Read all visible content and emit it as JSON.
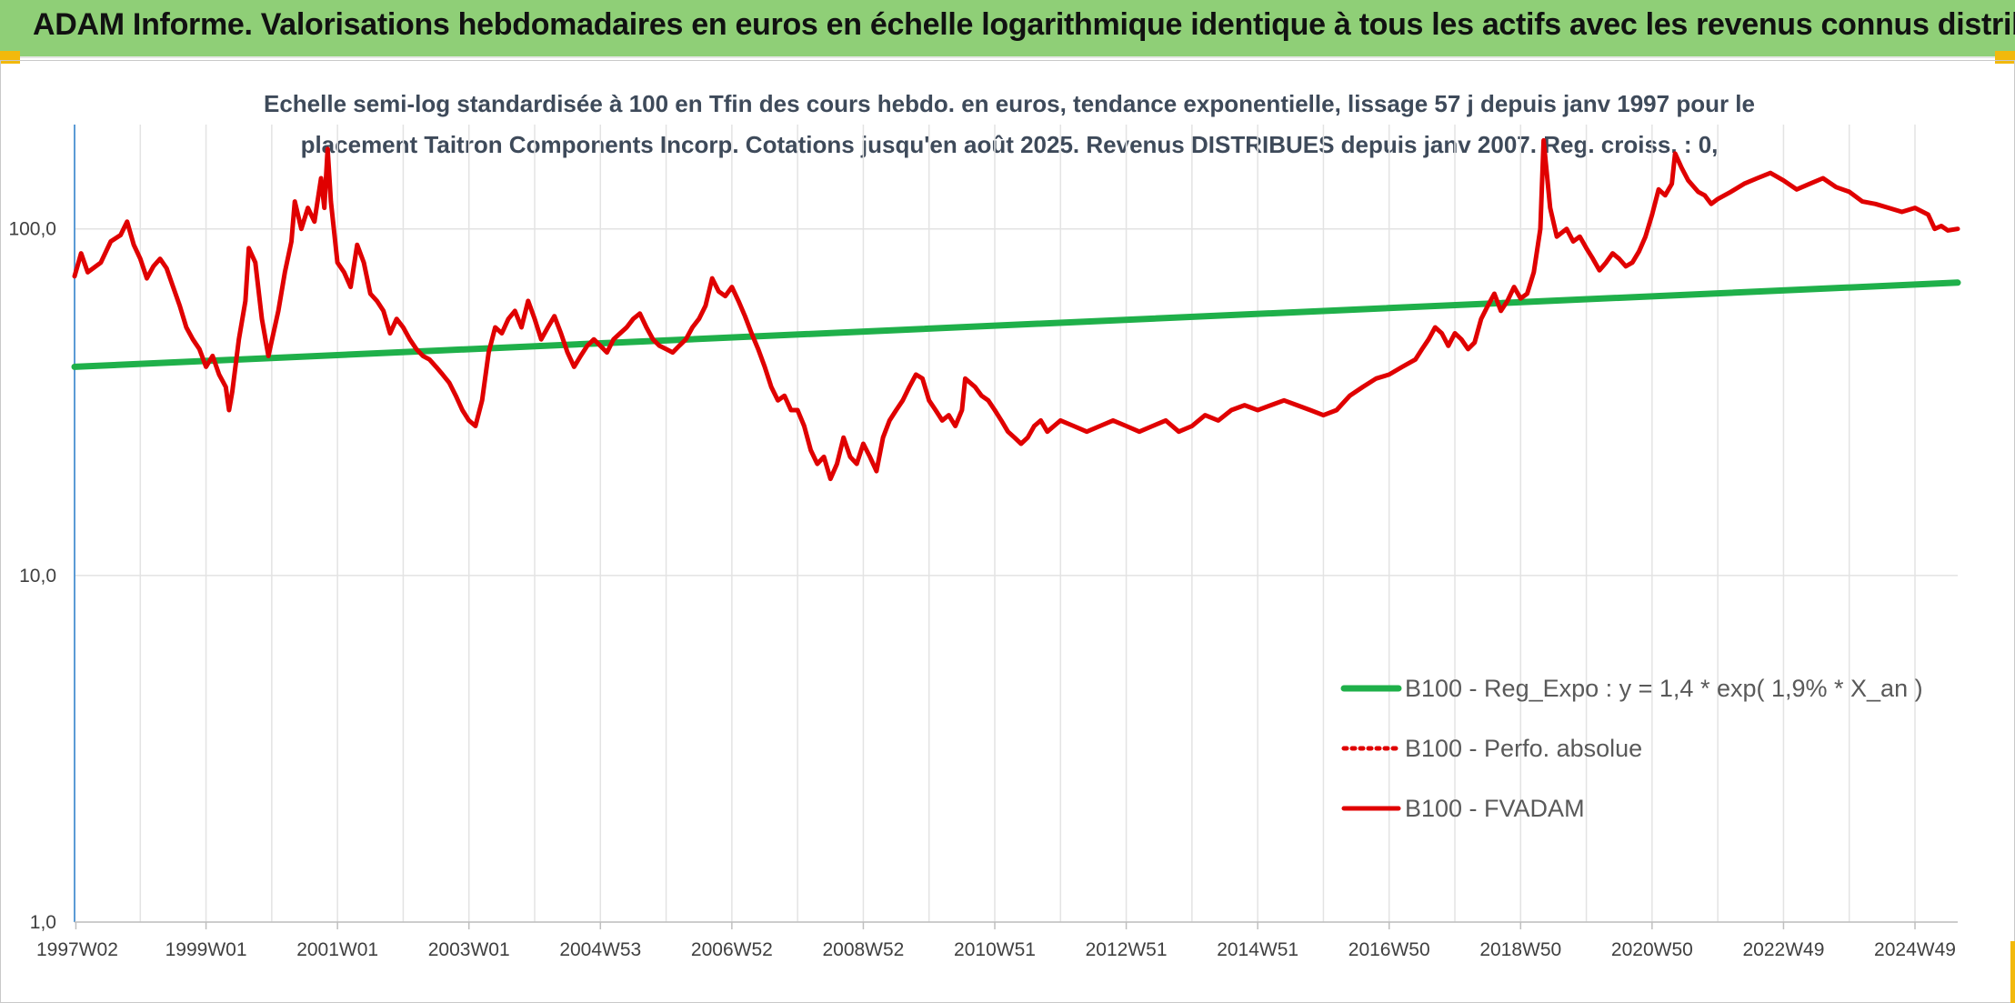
{
  "header": {
    "title": "ADAM Informe. Valorisations hebdomadaires en euros en échelle logarithmique identique à tous les actifs avec les revenus connus distribués",
    "accent_color": "#8fcf77",
    "corner_color": "#f2b90c"
  },
  "chart_data": {
    "type": "line",
    "subtitle_line1": "Echelle semi-log standardisée à 100 en Tfin des cours hebdo. en euros, tendance exponentielle, lissage 57 j depuis janv 1997 pour le",
    "subtitle_line2": "placement Taitron Components Incorp. Cotations jusqu'en août 2025. Revenus DISTRIBUES depuis janv 2007. Reg. croiss. : 0,",
    "y_scale": "log",
    "ylim": [
      1,
      200
    ],
    "y_ticks": [
      {
        "value": 1,
        "label": "1,0"
      },
      {
        "value": 10,
        "label": "10,0"
      },
      {
        "value": 100,
        "label": "100,0"
      }
    ],
    "xlim": [
      1997.0,
      2025.65
    ],
    "x_ticks": [
      {
        "year": 1997.02,
        "label": "1997W02"
      },
      {
        "year": 1999.0,
        "label": "1999W01"
      },
      {
        "year": 2001.0,
        "label": "2001W01"
      },
      {
        "year": 2003.0,
        "label": "2003W01"
      },
      {
        "year": 2005.0,
        "label": "2004W53"
      },
      {
        "year": 2007.0,
        "label": "2006W52"
      },
      {
        "year": 2009.0,
        "label": "2008W52"
      },
      {
        "year": 2011.0,
        "label": "2010W51"
      },
      {
        "year": 2013.0,
        "label": "2012W51"
      },
      {
        "year": 2015.0,
        "label": "2014W51"
      },
      {
        "year": 2017.0,
        "label": "2016W50"
      },
      {
        "year": 2019.0,
        "label": "2018W50"
      },
      {
        "year": 2021.0,
        "label": "2020W50"
      },
      {
        "year": 2023.0,
        "label": "2022W49"
      },
      {
        "year": 2025.0,
        "label": "2024W49"
      }
    ],
    "grid": true,
    "legend_placement": "bottom-right",
    "series": [
      {
        "name": "B100 - Reg_Expo : y = 1,4 * exp( 1,9% *  X_an )",
        "color": "#1fb04a",
        "style": "solid",
        "points": [
          [
            1997.0,
            40
          ],
          [
            2025.65,
            70
          ]
        ]
      },
      {
        "name": "B100 - Perfo. absolue",
        "color": "#e00000",
        "style": "dotted",
        "points": []
      },
      {
        "name": "B100 - FVADAM",
        "color": "#e00000",
        "style": "solid",
        "points": [
          [
            1997.0,
            73
          ],
          [
            1997.1,
            85
          ],
          [
            1997.2,
            75
          ],
          [
            1997.4,
            80
          ],
          [
            1997.55,
            92
          ],
          [
            1997.7,
            96
          ],
          [
            1997.8,
            105
          ],
          [
            1997.9,
            90
          ],
          [
            1998.0,
            82
          ],
          [
            1998.1,
            72
          ],
          [
            1998.2,
            78
          ],
          [
            1998.3,
            82
          ],
          [
            1998.4,
            77
          ],
          [
            1998.5,
            68
          ],
          [
            1998.6,
            60
          ],
          [
            1998.7,
            52
          ],
          [
            1998.8,
            48
          ],
          [
            1998.9,
            45
          ],
          [
            1999.0,
            40
          ],
          [
            1999.1,
            43
          ],
          [
            1999.2,
            38
          ],
          [
            1999.3,
            35
          ],
          [
            1999.35,
            30
          ],
          [
            1999.4,
            34
          ],
          [
            1999.5,
            48
          ],
          [
            1999.6,
            62
          ],
          [
            1999.65,
            88
          ],
          [
            1999.75,
            80
          ],
          [
            1999.85,
            55
          ],
          [
            1999.95,
            43
          ],
          [
            2000.1,
            58
          ],
          [
            2000.2,
            75
          ],
          [
            2000.3,
            92
          ],
          [
            2000.35,
            120
          ],
          [
            2000.45,
            100
          ],
          [
            2000.55,
            115
          ],
          [
            2000.65,
            105
          ],
          [
            2000.75,
            140
          ],
          [
            2000.8,
            115
          ],
          [
            2000.85,
            170
          ],
          [
            2000.9,
            120
          ],
          [
            2001.0,
            80
          ],
          [
            2001.1,
            75
          ],
          [
            2001.2,
            68
          ],
          [
            2001.3,
            90
          ],
          [
            2001.4,
            80
          ],
          [
            2001.5,
            65
          ],
          [
            2001.6,
            62
          ],
          [
            2001.7,
            58
          ],
          [
            2001.8,
            50
          ],
          [
            2001.9,
            55
          ],
          [
            2002.0,
            52
          ],
          [
            2002.1,
            48
          ],
          [
            2002.2,
            45
          ],
          [
            2002.3,
            43
          ],
          [
            2002.4,
            42
          ],
          [
            2002.5,
            40
          ],
          [
            2002.6,
            38
          ],
          [
            2002.7,
            36
          ],
          [
            2002.8,
            33
          ],
          [
            2002.9,
            30
          ],
          [
            2003.0,
            28
          ],
          [
            2003.1,
            27
          ],
          [
            2003.2,
            32
          ],
          [
            2003.3,
            44
          ],
          [
            2003.4,
            52
          ],
          [
            2003.5,
            50
          ],
          [
            2003.6,
            55
          ],
          [
            2003.7,
            58
          ],
          [
            2003.8,
            52
          ],
          [
            2003.9,
            62
          ],
          [
            2004.0,
            55
          ],
          [
            2004.1,
            48
          ],
          [
            2004.2,
            52
          ],
          [
            2004.3,
            56
          ],
          [
            2004.4,
            50
          ],
          [
            2004.5,
            44
          ],
          [
            2004.6,
            40
          ],
          [
            2004.7,
            43
          ],
          [
            2004.8,
            46
          ],
          [
            2004.9,
            48
          ],
          [
            2005.0,
            46
          ],
          [
            2005.1,
            44
          ],
          [
            2005.2,
            48
          ],
          [
            2005.3,
            50
          ],
          [
            2005.4,
            52
          ],
          [
            2005.5,
            55
          ],
          [
            2005.6,
            57
          ],
          [
            2005.7,
            52
          ],
          [
            2005.8,
            48
          ],
          [
            2005.9,
            46
          ],
          [
            2006.0,
            45
          ],
          [
            2006.1,
            44
          ],
          [
            2006.2,
            46
          ],
          [
            2006.3,
            48
          ],
          [
            2006.4,
            52
          ],
          [
            2006.5,
            55
          ],
          [
            2006.6,
            60
          ],
          [
            2006.7,
            72
          ],
          [
            2006.8,
            66
          ],
          [
            2006.9,
            64
          ],
          [
            2007.0,
            68
          ],
          [
            2007.1,
            62
          ],
          [
            2007.2,
            56
          ],
          [
            2007.3,
            50
          ],
          [
            2007.4,
            45
          ],
          [
            2007.5,
            40
          ],
          [
            2007.6,
            35
          ],
          [
            2007.7,
            32
          ],
          [
            2007.8,
            33
          ],
          [
            2007.9,
            30
          ],
          [
            2008.0,
            30
          ],
          [
            2008.1,
            27
          ],
          [
            2008.2,
            23
          ],
          [
            2008.3,
            21
          ],
          [
            2008.4,
            22
          ],
          [
            2008.5,
            19
          ],
          [
            2008.6,
            21
          ],
          [
            2008.7,
            25
          ],
          [
            2008.8,
            22
          ],
          [
            2008.9,
            21
          ],
          [
            2009.0,
            24
          ],
          [
            2009.1,
            22
          ],
          [
            2009.2,
            20
          ],
          [
            2009.3,
            25
          ],
          [
            2009.4,
            28
          ],
          [
            2009.5,
            30
          ],
          [
            2009.6,
            32
          ],
          [
            2009.7,
            35
          ],
          [
            2009.8,
            38
          ],
          [
            2009.9,
            37
          ],
          [
            2010.0,
            32
          ],
          [
            2010.1,
            30
          ],
          [
            2010.2,
            28
          ],
          [
            2010.3,
            29
          ],
          [
            2010.4,
            27
          ],
          [
            2010.5,
            30
          ],
          [
            2010.55,
            37
          ],
          [
            2010.7,
            35
          ],
          [
            2010.8,
            33
          ],
          [
            2010.9,
            32
          ],
          [
            2011.0,
            30
          ],
          [
            2011.1,
            28
          ],
          [
            2011.2,
            26
          ],
          [
            2011.3,
            25
          ],
          [
            2011.4,
            24
          ],
          [
            2011.5,
            25
          ],
          [
            2011.6,
            27
          ],
          [
            2011.7,
            28
          ],
          [
            2011.8,
            26
          ],
          [
            2011.9,
            27
          ],
          [
            2012.0,
            28
          ],
          [
            2012.2,
            27
          ],
          [
            2012.4,
            26
          ],
          [
            2012.6,
            27
          ],
          [
            2012.8,
            28
          ],
          [
            2013.0,
            27
          ],
          [
            2013.2,
            26
          ],
          [
            2013.4,
            27
          ],
          [
            2013.6,
            28
          ],
          [
            2013.8,
            26
          ],
          [
            2014.0,
            27
          ],
          [
            2014.2,
            29
          ],
          [
            2014.4,
            28
          ],
          [
            2014.6,
            30
          ],
          [
            2014.8,
            31
          ],
          [
            2015.0,
            30
          ],
          [
            2015.2,
            31
          ],
          [
            2015.4,
            32
          ],
          [
            2015.6,
            31
          ],
          [
            2015.8,
            30
          ],
          [
            2016.0,
            29
          ],
          [
            2016.2,
            30
          ],
          [
            2016.4,
            33
          ],
          [
            2016.6,
            35
          ],
          [
            2016.8,
            37
          ],
          [
            2017.0,
            38
          ],
          [
            2017.2,
            40
          ],
          [
            2017.4,
            42
          ],
          [
            2017.5,
            45
          ],
          [
            2017.6,
            48
          ],
          [
            2017.7,
            52
          ],
          [
            2017.8,
            50
          ],
          [
            2017.9,
            46
          ],
          [
            2018.0,
            50
          ],
          [
            2018.1,
            48
          ],
          [
            2018.2,
            45
          ],
          [
            2018.3,
            47
          ],
          [
            2018.4,
            55
          ],
          [
            2018.5,
            60
          ],
          [
            2018.6,
            65
          ],
          [
            2018.7,
            58
          ],
          [
            2018.8,
            62
          ],
          [
            2018.9,
            68
          ],
          [
            2019.0,
            63
          ],
          [
            2019.1,
            65
          ],
          [
            2019.2,
            75
          ],
          [
            2019.3,
            100
          ],
          [
            2019.35,
            180
          ],
          [
            2019.45,
            115
          ],
          [
            2019.55,
            95
          ],
          [
            2019.7,
            100
          ],
          [
            2019.8,
            92
          ],
          [
            2019.9,
            95
          ],
          [
            2020.0,
            88
          ],
          [
            2020.1,
            82
          ],
          [
            2020.2,
            76
          ],
          [
            2020.3,
            80
          ],
          [
            2020.4,
            85
          ],
          [
            2020.5,
            82
          ],
          [
            2020.6,
            78
          ],
          [
            2020.7,
            80
          ],
          [
            2020.8,
            86
          ],
          [
            2020.9,
            95
          ],
          [
            2021.0,
            110
          ],
          [
            2021.1,
            130
          ],
          [
            2021.2,
            125
          ],
          [
            2021.3,
            135
          ],
          [
            2021.35,
            165
          ],
          [
            2021.45,
            150
          ],
          [
            2021.55,
            138
          ],
          [
            2021.7,
            128
          ],
          [
            2021.8,
            125
          ],
          [
            2021.9,
            118
          ],
          [
            2022.0,
            122
          ],
          [
            2022.2,
            128
          ],
          [
            2022.4,
            135
          ],
          [
            2022.6,
            140
          ],
          [
            2022.8,
            145
          ],
          [
            2023.0,
            138
          ],
          [
            2023.2,
            130
          ],
          [
            2023.4,
            135
          ],
          [
            2023.6,
            140
          ],
          [
            2023.8,
            132
          ],
          [
            2024.0,
            128
          ],
          [
            2024.2,
            120
          ],
          [
            2024.4,
            118
          ],
          [
            2024.6,
            115
          ],
          [
            2024.8,
            112
          ],
          [
            2025.0,
            115
          ],
          [
            2025.2,
            110
          ],
          [
            2025.3,
            100
          ],
          [
            2025.4,
            102
          ],
          [
            2025.5,
            99
          ],
          [
            2025.65,
            100
          ]
        ]
      }
    ]
  }
}
